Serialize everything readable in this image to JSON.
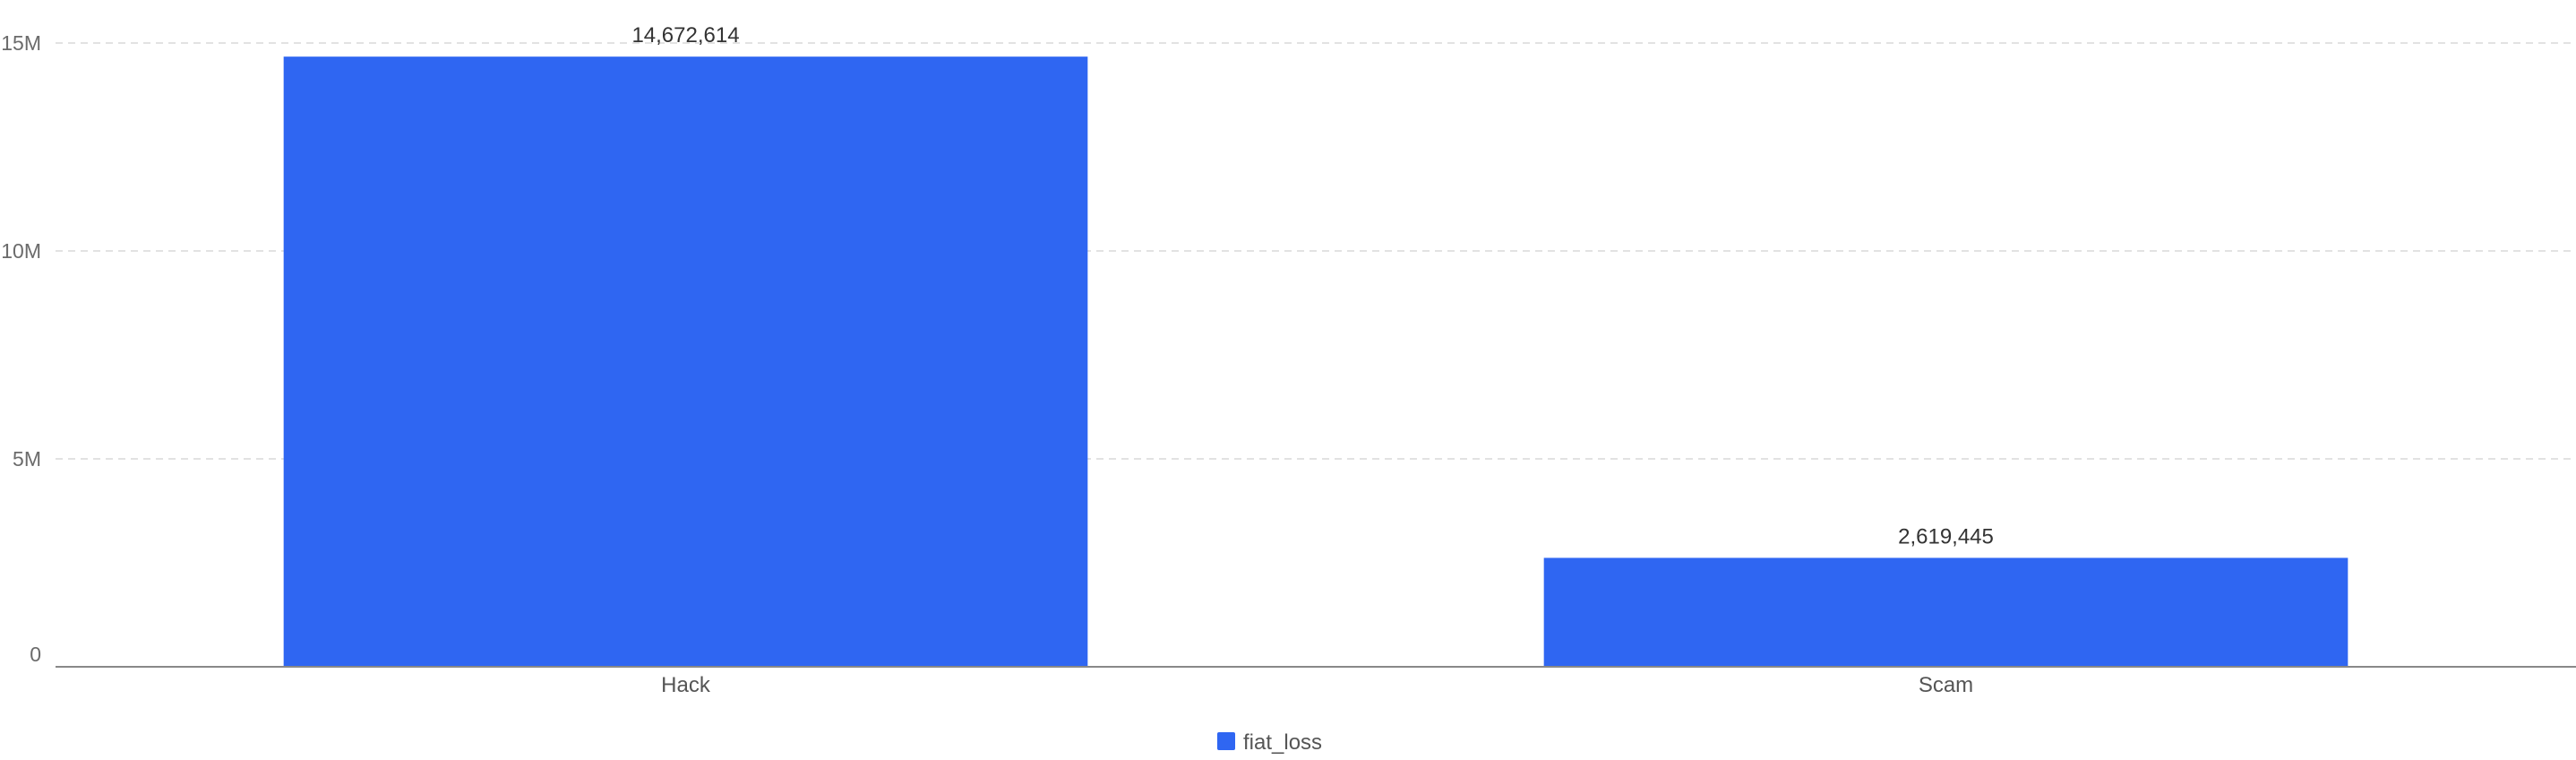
{
  "chart_data": {
    "type": "bar",
    "categories": [
      "Hack",
      "Scam"
    ],
    "series": [
      {
        "name": "fiat_loss",
        "values": [
          14672614,
          2619445
        ],
        "color": "#2f66f2"
      }
    ],
    "data_labels": [
      "14,672,614",
      "2,619,445"
    ],
    "y_ticks": [
      {
        "value": 0,
        "label": "0"
      },
      {
        "value": 5000000,
        "label": "5M"
      },
      {
        "value": 10000000,
        "label": "10M"
      },
      {
        "value": 15000000,
        "label": "15M"
      }
    ],
    "ylim": [
      0,
      15000000
    ],
    "grid": true,
    "legend_position": "bottom-center",
    "title": "",
    "xlabel": "",
    "ylabel": ""
  }
}
